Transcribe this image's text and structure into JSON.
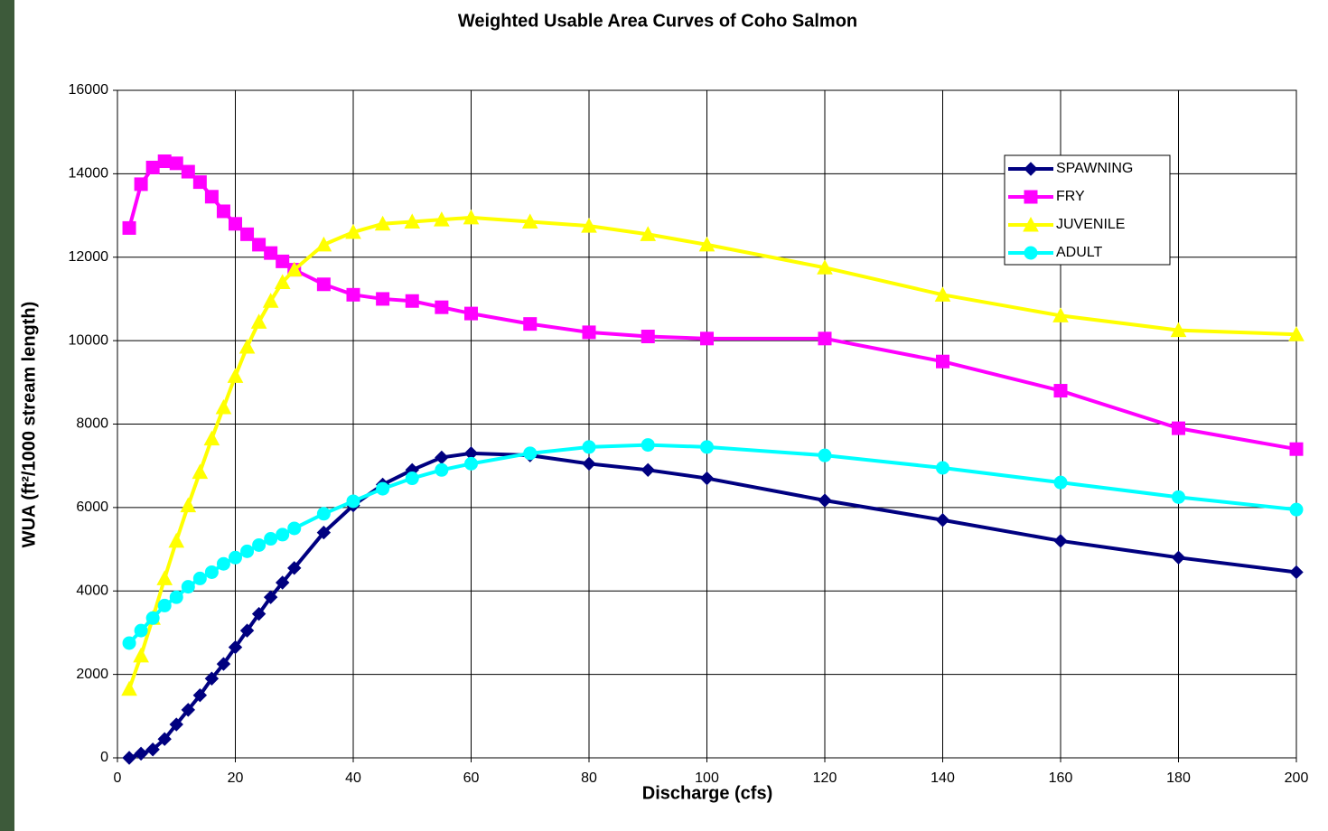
{
  "chart_data": {
    "type": "line",
    "title": "Weighted Usable Area Curves of Coho Salmon",
    "x_label": "Discharge (cfs)",
    "y_label": "WUA (ft²/1000 stream length)",
    "x": [
      2,
      4,
      6,
      8,
      10,
      12,
      14,
      16,
      18,
      20,
      22,
      24,
      26,
      28,
      30,
      35,
      40,
      45,
      50,
      55,
      60,
      70,
      80,
      90,
      100,
      120,
      140,
      160,
      180,
      200
    ],
    "series": [
      {
        "name": "SPAWNING",
        "color": "#000080",
        "marker": "diamond",
        "values": [
          0,
          100,
          200,
          450,
          800,
          1150,
          1500,
          1900,
          2250,
          2650,
          3050,
          3450,
          3850,
          4200,
          4550,
          5400,
          6050,
          6550,
          6900,
          7200,
          7300,
          7250,
          7050,
          6900,
          6700,
          6170,
          5700,
          5200,
          4800,
          4450
        ]
      },
      {
        "name": "FRY",
        "color": "#ff00ff",
        "marker": "square",
        "values": [
          12700,
          13750,
          14150,
          14300,
          14250,
          14050,
          13800,
          13450,
          13100,
          12800,
          12550,
          12300,
          12100,
          11900,
          11700,
          11350,
          11100,
          11000,
          10950,
          10800,
          10650,
          10400,
          10200,
          10100,
          10050,
          10050,
          9500,
          8800,
          7900,
          7400
        ]
      },
      {
        "name": "JUVENILE",
        "color": "#ffff00",
        "marker": "triangle",
        "values": [
          1650,
          2450,
          3350,
          4300,
          5200,
          6050,
          6850,
          7650,
          8400,
          9150,
          9850,
          10450,
          10950,
          11400,
          11700,
          12300,
          12600,
          12800,
          12850,
          12900,
          12950,
          12850,
          12750,
          12550,
          12300,
          11750,
          11100,
          10600,
          10250,
          10150
        ]
      },
      {
        "name": "ADULT",
        "color": "#00ffff",
        "marker": "circle",
        "values": [
          2750,
          3050,
          3350,
          3650,
          3850,
          4100,
          4300,
          4450,
          4650,
          4800,
          4950,
          5100,
          5250,
          5350,
          5500,
          5850,
          6150,
          6450,
          6700,
          6900,
          7050,
          7300,
          7450,
          7500,
          7450,
          7250,
          6950,
          6600,
          6250,
          5950
        ]
      }
    ],
    "xlim": [
      0,
      200
    ],
    "xticks": [
      0,
      20,
      40,
      60,
      80,
      100,
      120,
      140,
      160,
      180,
      200
    ],
    "ylim": [
      0,
      16000
    ],
    "yticks": [
      0,
      2000,
      4000,
      6000,
      8000,
      10000,
      12000,
      14000,
      16000
    ],
    "grid": true,
    "legend": "top-right"
  }
}
